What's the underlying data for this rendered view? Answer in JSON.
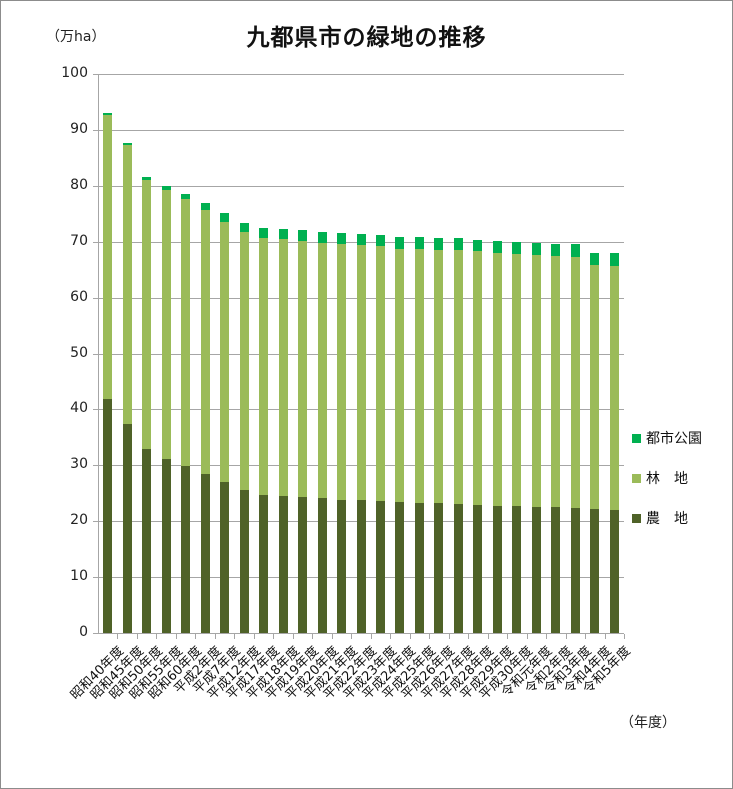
{
  "chart_data": {
    "type": "bar",
    "stacked": true,
    "title": "九都県市の緑地の推移",
    "ylabel": "（万ha）",
    "xlabel": "（年度）",
    "ylim": [
      0,
      100
    ],
    "yticks": [
      0,
      10,
      20,
      30,
      40,
      50,
      60,
      70,
      80,
      90,
      100
    ],
    "grid": true,
    "legend_position": "right",
    "categories": [
      "昭和40年度",
      "昭和45年度",
      "昭和50年度",
      "昭和55年度",
      "昭和60年度",
      "平成2年度",
      "平成7年度",
      "平成12年度",
      "平成17年度",
      "平成18年度",
      "平成19年度",
      "平成20年度",
      "平成21年度",
      "平成22年度",
      "平成23年度",
      "平成24年度",
      "平成25年度",
      "平成26年度",
      "平成27年度",
      "平成28年度",
      "平成29年度",
      "平成30年度",
      "令和元年度",
      "令和2年度",
      "令和3年度",
      "令和4年度",
      "令和5年度"
    ],
    "series": [
      {
        "name": "農　地",
        "color": "#4f6228",
        "values": [
          41.9,
          37.4,
          32.9,
          31.1,
          29.9,
          28.4,
          27.0,
          25.6,
          24.7,
          24.5,
          24.3,
          24.2,
          23.8,
          23.8,
          23.6,
          23.4,
          23.3,
          23.3,
          23.1,
          22.9,
          22.7,
          22.7,
          22.5,
          22.5,
          22.4,
          22.2,
          22.0
        ]
      },
      {
        "name": "林　地",
        "color": "#9bbb59",
        "values": [
          50.8,
          49.9,
          48.1,
          48.2,
          47.7,
          47.3,
          46.5,
          46.1,
          46.0,
          45.9,
          45.9,
          45.6,
          45.8,
          45.6,
          45.6,
          45.3,
          45.4,
          45.2,
          45.4,
          45.4,
          45.3,
          45.1,
          45.1,
          44.9,
          44.9,
          43.6,
          43.6
        ]
      },
      {
        "name": "都市公園",
        "color": "#00b050",
        "values": [
          0.3,
          0.4,
          0.6,
          0.7,
          0.9,
          1.2,
          1.6,
          1.6,
          1.8,
          1.9,
          1.9,
          1.9,
          2.0,
          2.0,
          2.0,
          2.1,
          2.1,
          2.1,
          2.1,
          2.1,
          2.1,
          2.1,
          2.2,
          2.2,
          2.3,
          2.2,
          2.4
        ]
      }
    ]
  },
  "legend": [
    {
      "label": "都市公園",
      "color": "#00b050"
    },
    {
      "label": "林　地",
      "color": "#9bbb59"
    },
    {
      "label": "農　地",
      "color": "#4f6228"
    }
  ]
}
